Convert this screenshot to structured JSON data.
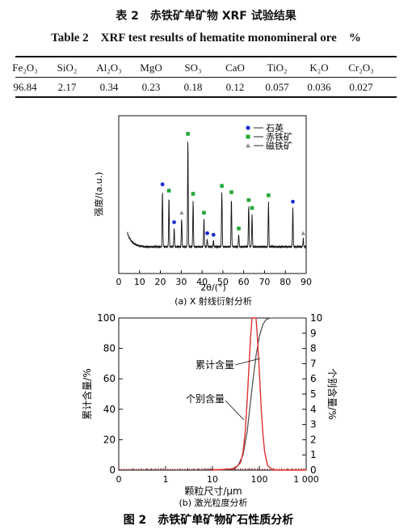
{
  "table": {
    "title_cn": "表 2　赤铁矿单矿物 XRF 试验结果",
    "title_en": "Table 2　XRF test results of hematite monomineral ore　%",
    "headers": [
      "Fe₂O₃",
      "SiO₂",
      "Al₂O₃",
      "MgO",
      "SO₃",
      "CaO",
      "TiO₂",
      "K₂O",
      "Cr₂O₃"
    ],
    "values": [
      "96.84",
      "2.17",
      "0.34",
      "0.23",
      "0.18",
      "0.12",
      "0.057",
      "0.036",
      "0.027"
    ]
  },
  "chart_data": [
    {
      "type": "line",
      "xlabel": "2θ/(°)",
      "ylabel": "强度/(a.u.)",
      "xlim": [
        0,
        90
      ],
      "x_ticks": [
        "0",
        "10",
        "20",
        "30",
        "40",
        "50",
        "60",
        "70",
        "80",
        "90"
      ],
      "legend": [
        "石英",
        "赤铁矿",
        "磁铁矿"
      ],
      "legend_position": "top-right",
      "caption": "(a) X 射线衍射分析",
      "peaks": [
        {
          "x": 21,
          "h": 0.36,
          "phase": "石英"
        },
        {
          "x": 24.1,
          "h": 0.32,
          "phase": "赤铁矿"
        },
        {
          "x": 26.6,
          "h": 0.12,
          "phase": "石英"
        },
        {
          "x": 30.2,
          "h": 0.18,
          "phase": "磁铁矿"
        },
        {
          "x": 33.2,
          "h": 0.68,
          "phase": "赤铁矿"
        },
        {
          "x": 35.7,
          "h": 0.3,
          "phase": "赤铁矿"
        },
        {
          "x": 40.9,
          "h": 0.18,
          "phase": "赤铁矿"
        },
        {
          "x": 42.5,
          "h": 0.05,
          "phase": "石英"
        },
        {
          "x": 45.5,
          "h": 0.04,
          "phase": "石英"
        },
        {
          "x": 49.5,
          "h": 0.35,
          "phase": "赤铁矿"
        },
        {
          "x": 54.1,
          "h": 0.31,
          "phase": "赤铁矿"
        },
        {
          "x": 57.6,
          "h": 0.08,
          "phase": "赤铁矿"
        },
        {
          "x": 62.4,
          "h": 0.26,
          "phase": "赤铁矿"
        },
        {
          "x": 64.0,
          "h": 0.21,
          "phase": "赤铁矿"
        },
        {
          "x": 71.9,
          "h": 0.29,
          "phase": "赤铁矿"
        },
        {
          "x": 83.6,
          "h": 0.25,
          "phase": "石英"
        },
        {
          "x": 88.6,
          "h": 0.05,
          "phase": "磁铁矿"
        }
      ]
    },
    {
      "type": "line",
      "xlabel": "颗粒尺寸/μm",
      "ylabel": "累计含量/%",
      "ylabel_right": "个别含量/%",
      "x_scale": "log",
      "xlim": [
        0.1,
        1000
      ],
      "ylim": [
        0,
        100
      ],
      "ylim_right": [
        0,
        10
      ],
      "x_ticks": [
        "0",
        "1",
        "10",
        "100",
        "1 000"
      ],
      "y_ticks": [
        "0",
        "20",
        "40",
        "60",
        "80",
        "100"
      ],
      "y_ticks_right": [
        "0",
        "1",
        "2",
        "3",
        "4",
        "5",
        "6",
        "7",
        "8",
        "9",
        "10"
      ],
      "caption": "(b) 激光粒度分析",
      "series": [
        {
          "name": "累计含量",
          "color": "#555555",
          "x": [
            10,
            25,
            35,
            45,
            55,
            65,
            75,
            85,
            100,
            120,
            140,
            170,
            200,
            300,
            1000
          ],
          "y": [
            0,
            0.5,
            3,
            10,
            25,
            45,
            62,
            75,
            88,
            96,
            99,
            100,
            100,
            100,
            100
          ]
        },
        {
          "name": "个别含量",
          "color": "#e03030",
          "axis": "right",
          "x": [
            10,
            30,
            40,
            45,
            50,
            55,
            60,
            65,
            70,
            75,
            80,
            85,
            90,
            100,
            110,
            120,
            130,
            150,
            200,
            1000
          ],
          "y": [
            0,
            0.1,
            0.5,
            1.2,
            2.5,
            4.5,
            6.7,
            8.7,
            10,
            10.2,
            10.2,
            10,
            9.0,
            6.5,
            4.0,
            2.3,
            1.2,
            0.3,
            0,
            0
          ]
        }
      ],
      "annotations": [
        {
          "text": "累计含量",
          "target": "累计含量"
        },
        {
          "text": "个别含量",
          "target": "个别含量"
        }
      ]
    }
  ],
  "figure_caption": "图 2　赤铁矿单矿物矿石性质分析"
}
